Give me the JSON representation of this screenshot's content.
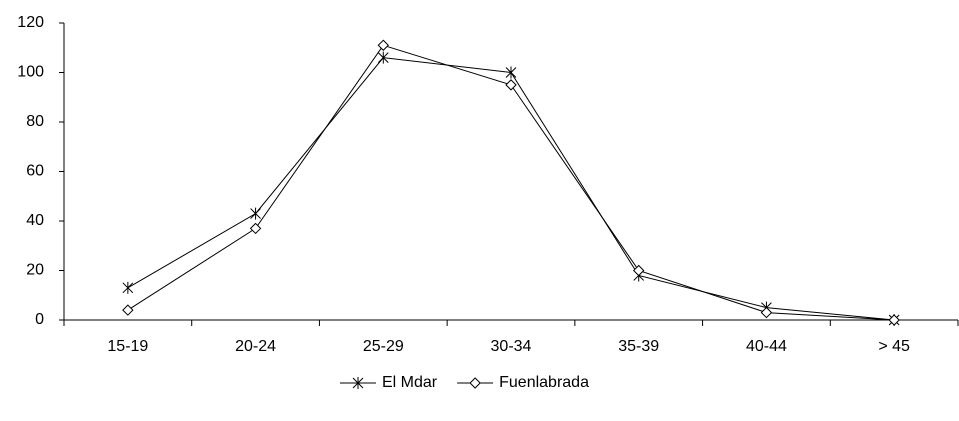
{
  "chart_data": {
    "type": "line",
    "categories": [
      "15-19",
      "20-24",
      "25-29",
      "30-34",
      "35-39",
      "40-44",
      "> 45"
    ],
    "series": [
      {
        "name": "El Mdar",
        "color": "#000000",
        "marker": "star",
        "values": [
          13,
          43,
          106,
          100,
          18,
          5,
          0
        ]
      },
      {
        "name": "Fuenlabrada",
        "color": "#000000",
        "marker": "diamond",
        "values": [
          4,
          37,
          111,
          95,
          20,
          3,
          0
        ]
      }
    ],
    "ylim": [
      0,
      120
    ],
    "yticks": [
      0,
      20,
      40,
      60,
      80,
      100,
      120
    ],
    "legend": "bottom"
  }
}
